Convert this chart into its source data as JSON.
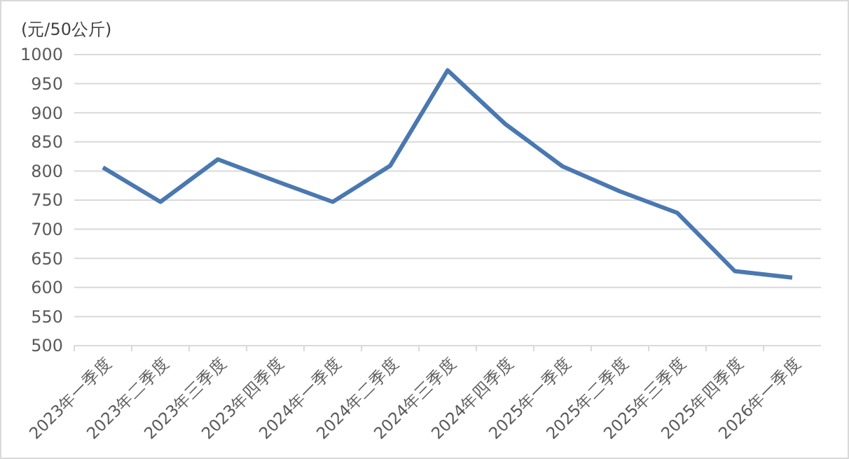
{
  "chart_data": {
    "type": "line",
    "ylabel": "(元/50公斤)",
    "categories": [
      "2023年一季度",
      "2023年二季度",
      "2023年三季度",
      "2023年四季度",
      "2024年一季度",
      "2024年二季度",
      "2024年三季度",
      "2024年四季度",
      "2025年一季度",
      "2025年二季度",
      "2025年三季度",
      "2025年四季度",
      "2026年一季度"
    ],
    "series": [
      {
        "color": "#4a78b0",
        "values": [
          806,
          747,
          820,
          783,
          747,
          809,
          973,
          881,
          808,
          765,
          728,
          628,
          617
        ]
      }
    ],
    "ylim": [
      500,
      1000
    ],
    "yticks": [
      500,
      550,
      600,
      650,
      700,
      750,
      800,
      850,
      900,
      950,
      1000
    ],
    "grid": "y",
    "marker": "none",
    "line_style": "solid"
  }
}
